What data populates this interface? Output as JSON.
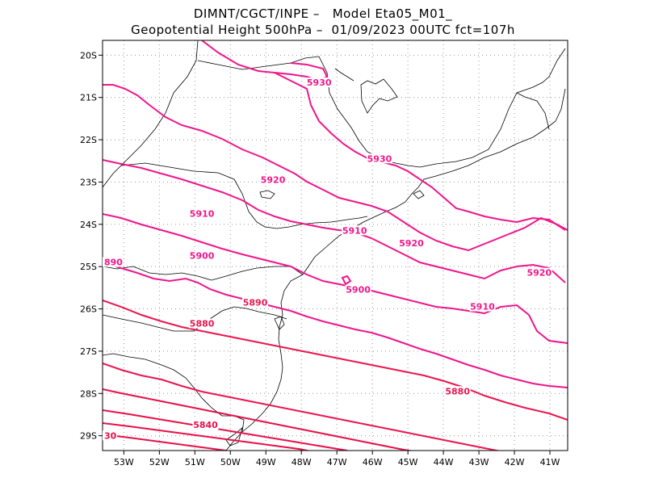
{
  "header": {
    "line1": "DIMNT/CGCT/INPE –   Model Eta05_M01_",
    "line2": "Geopotential Height 500hPa –  01/09/2023 00UTC fct=107h"
  },
  "axes": {
    "lat_labels": [
      "20S",
      "21S",
      "22S",
      "23S",
      "24S",
      "25S",
      "26S",
      "27S",
      "28S",
      "29S"
    ],
    "lon_labels": [
      "53W",
      "52W",
      "51W",
      "50W",
      "49W",
      "48W",
      "47W",
      "46W",
      "45W",
      "44W",
      "43W",
      "42W",
      "41W"
    ]
  },
  "colors": {
    "magenta": "#f0168c",
    "crimson": "#ea1650",
    "red": "#e8104a"
  },
  "contour_labels": [
    {
      "text": "5930",
      "lon": -45.8,
      "lat": -22.5
    },
    {
      "text": "5930",
      "lon": -47.5,
      "lat": -20.7
    },
    {
      "text": "5920",
      "lon": -48.8,
      "lat": -23.0
    },
    {
      "text": "5920",
      "lon": -44.9,
      "lat": -24.5
    },
    {
      "text": "5920",
      "lon": -41.3,
      "lat": -25.2
    },
    {
      "text": "5910",
      "lon": -50.8,
      "lat": -23.8
    },
    {
      "text": "5910",
      "lon": -46.5,
      "lat": -24.2
    },
    {
      "text": "5910",
      "lon": -42.9,
      "lat": -26.0
    },
    {
      "text": "5900",
      "lon": -50.8,
      "lat": -24.8
    },
    {
      "text": "5900",
      "lon": -46.4,
      "lat": -25.6
    },
    {
      "text": "5890",
      "lon": -49.3,
      "lat": -25.9
    },
    {
      "text": "5880",
      "lon": -50.8,
      "lat": -26.4
    },
    {
      "text": "5880",
      "lon": -43.6,
      "lat": -28.0
    },
    {
      "text": "5840",
      "lon": -50.7,
      "lat": -28.8
    }
  ],
  "edge_labels": [
    {
      "text": "890",
      "lat": -24.95
    },
    {
      "text": "30",
      "lat": -29.05
    }
  ]
}
